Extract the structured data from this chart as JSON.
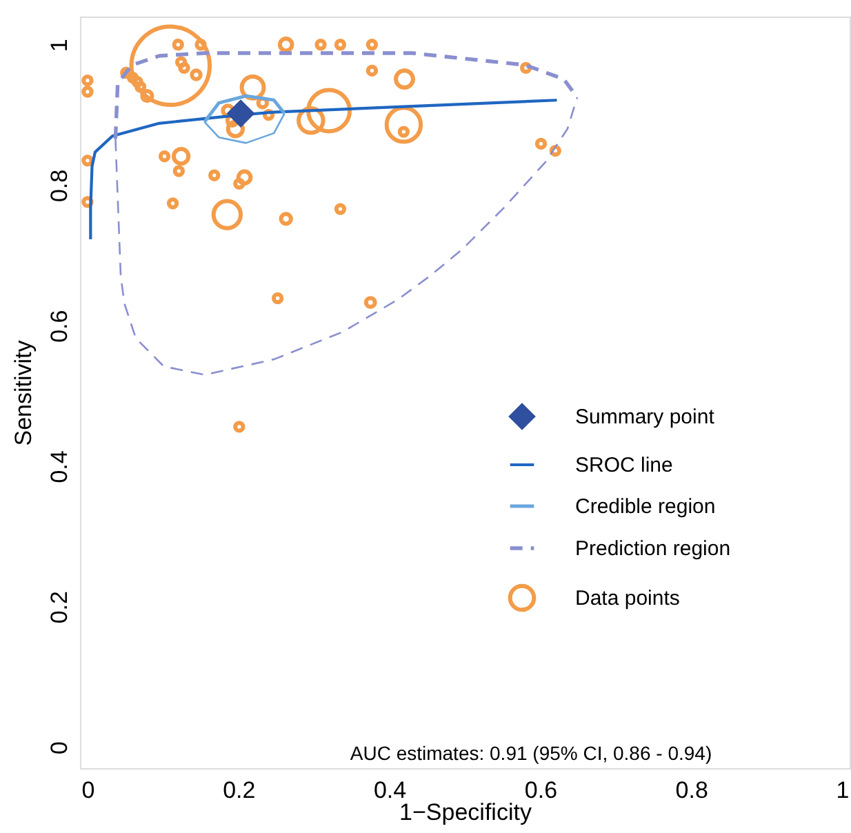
{
  "chart_data": {
    "type": "scatter",
    "xlabel": "1−Specificity",
    "ylabel": "Sensitivity",
    "xlim": [
      -0.01,
      1.01
    ],
    "ylim": [
      -0.03,
      1.04
    ],
    "xticks": [
      0,
      0.2,
      0.4,
      0.6,
      0.8,
      1
    ],
    "yticks": [
      0,
      0.2,
      0.4,
      0.6,
      0.8,
      1
    ],
    "grid": false,
    "legend": "right",
    "annotations": [
      "AUC estimates:   0.91 (95% CI, 0.86 - 0.94)"
    ],
    "series": [
      {
        "name": "Summary point",
        "marker": "diamond",
        "color": "#2f4f9f",
        "x": [
          0.203
        ],
        "values": [
          0.902
        ]
      },
      {
        "name": "SROC line",
        "type": "line",
        "line_style": "solid",
        "color": "#1f66c1",
        "x": [
          0.004,
          0.004,
          0.006,
          0.01,
          0.033,
          0.095,
          0.203,
          0.247,
          0.622
        ],
        "values": [
          0.723,
          0.768,
          0.827,
          0.847,
          0.87,
          0.888,
          0.9,
          0.904,
          0.921
        ]
      },
      {
        "name": "Credible region",
        "type": "line",
        "line_style": "solid",
        "color": "#6aa6dd",
        "x": [
          0.155,
          0.174,
          0.21,
          0.247,
          0.261
        ],
        "values": [
          0.89,
          0.917,
          0.927,
          0.921,
          0.902
        ]
      },
      {
        "type": "line",
        "line_style": "solid",
        "color": "#6aa6dd",
        "x": [
          0.155,
          0.174,
          0.21,
          0.247,
          0.261
        ],
        "values": [
          0.89,
          0.868,
          0.86,
          0.874,
          0.902
        ]
      },
      {
        "name": "Prediction region",
        "type": "line",
        "line_style": "dashed",
        "color": "#8a8fcf",
        "x": [
          0.037,
          0.04,
          0.059,
          0.095,
          0.155,
          0.247,
          0.43,
          0.58,
          0.631,
          0.649
        ],
        "values": [
          0.866,
          0.945,
          0.971,
          0.984,
          0.988,
          0.988,
          0.988,
          0.971,
          0.951,
          0.925
        ]
      },
      {
        "type": "line",
        "line_style": "dashed",
        "color": "#8a8fcf",
        "x": [
          0.037,
          0.044,
          0.049,
          0.064,
          0.101,
          0.155,
          0.247,
          0.338,
          0.411,
          0.453,
          0.497,
          0.552,
          0.607,
          0.636,
          0.649
        ],
        "values": [
          0.866,
          0.67,
          0.631,
          0.582,
          0.542,
          0.53,
          0.552,
          0.591,
          0.637,
          0.67,
          0.709,
          0.768,
          0.833,
          0.88,
          0.925
        ]
      },
      {
        "name": "Data points",
        "type": "bubble",
        "marker": "circle",
        "color": "#f39c4a",
        "x": [
          0.263,
          0.12,
          0.15,
          0.11,
          0.124,
          0.128,
          0.144,
          0.079,
          0.051,
          0.06,
          0.066,
          0.07,
          0,
          0,
          0.219,
          0.232,
          0.196,
          0.192,
          0.296,
          0.32,
          0,
          0.102,
          0.124,
          0.121,
          0.168,
          0.208,
          0.201,
          0,
          0.113,
          0.185,
          0.263,
          0.335,
          0.309,
          0.335,
          0.377,
          0.377,
          0.42,
          0.419,
          0.419,
          0.581,
          0.601,
          0.62,
          0.252,
          0.375,
          0.201,
          0.24,
          0.186
        ],
        "values": [
          1.0,
          1.0,
          1.0,
          0.97,
          0.975,
          0.967,
          0.957,
          0.927,
          0.96,
          0.953,
          0.947,
          0.94,
          0.949,
          0.933,
          0.939,
          0.917,
          0.88,
          0.892,
          0.892,
          0.906,
          0.835,
          0.841,
          0.841,
          0.82,
          0.814,
          0.811,
          0.802,
          0.776,
          0.774,
          0.758,
          0.752,
          0.766,
          1.0,
          1.0,
          1.0,
          0.963,
          0.951,
          0.886,
          0.876,
          0.967,
          0.859,
          0.849,
          0.639,
          0.633,
          0.456,
          0.9,
          0.906
        ],
        "sizes": [
          0.024,
          0.01,
          0.01,
          1,
          0.01,
          0.01,
          0.012,
          0.016,
          0.01,
          0.01,
          0.01,
          0.01,
          0.01,
          0.01,
          0.079,
          0.012,
          0.035,
          0.016,
          0.098,
          0.28,
          0.01,
          0.01,
          0.035,
          0.01,
          0.01,
          0.024,
          0.01,
          0.01,
          0.01,
          0.12,
          0.016,
          0.01,
          0.01,
          0.01,
          0.01,
          0.01,
          0.048,
          0.19,
          0.01,
          0.01,
          0.01,
          0.01,
          0.01,
          0.013,
          0.01,
          0.01,
          0.016
        ]
      }
    ]
  }
}
